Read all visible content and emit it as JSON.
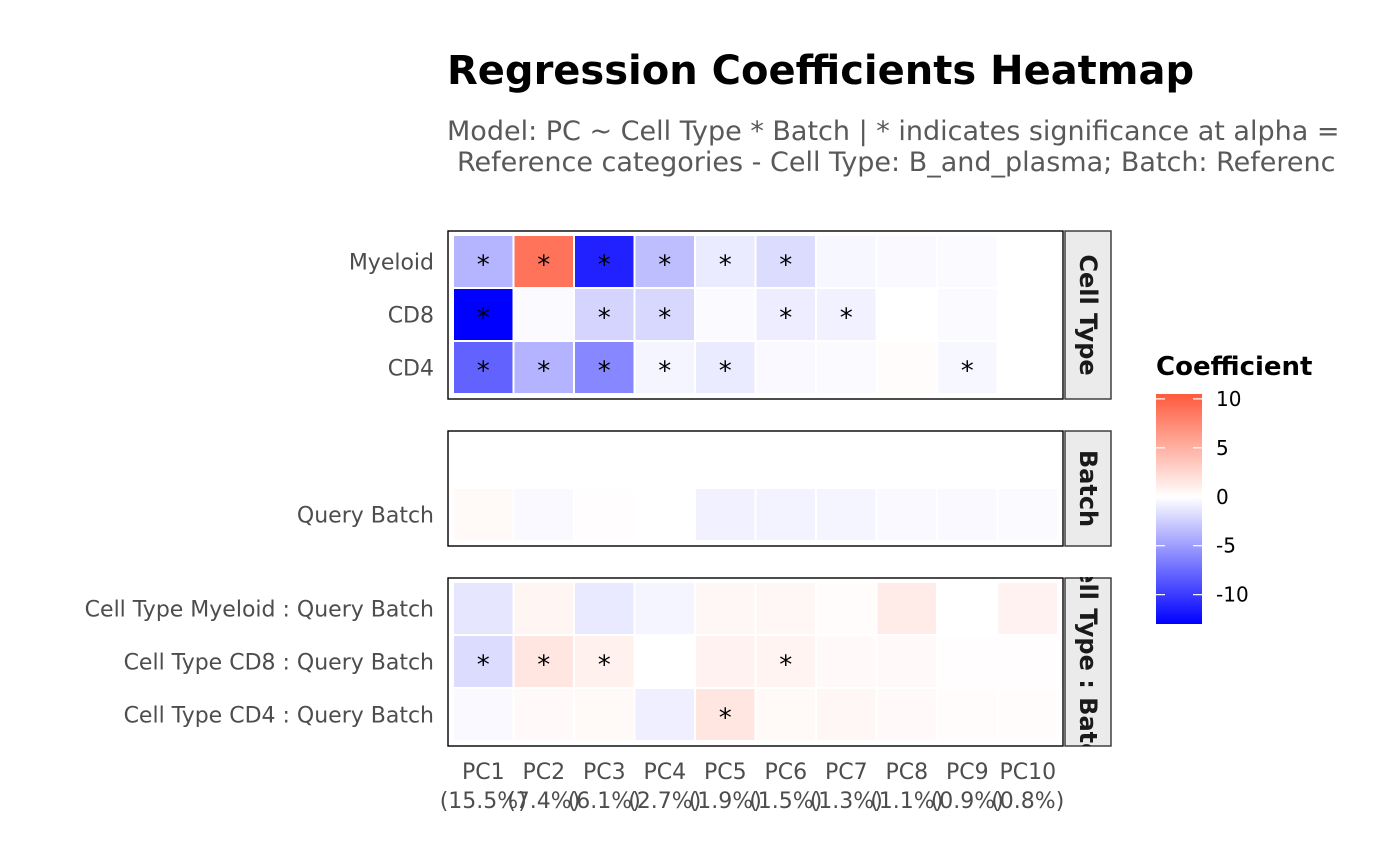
{
  "chart_data": {
    "type": "heatmap",
    "title": "Regression Coefficients Heatmap",
    "subtitle_lines": [
      "Model: PC ~ Cell Type * Batch | * indicates significance at alpha = ",
      "Reference categories - Cell Type: B_and_plasma; Batch: Referenc"
    ],
    "columns": [
      "PC1",
      "PC2",
      "PC3",
      "PC4",
      "PC5",
      "PC6",
      "PC7",
      "PC8",
      "PC9",
      "PC10"
    ],
    "column_variance": [
      "(15.5%)",
      "(7.4%)",
      "(6.1%)",
      "(2.7%)",
      "(1.9%)",
      "(1.5%)",
      "(1.3%)",
      "(1.1%)",
      "(0.9%)",
      "(0.8%)"
    ],
    "legend": {
      "title": "Coefficient",
      "ticks": [
        10,
        5,
        0,
        -5,
        -10
      ],
      "range": [
        -13,
        10.5
      ],
      "low_color": "#0000ff",
      "mid_color": "#ffffff",
      "high_color": "#ff5a3c"
    },
    "significance_symbol": "*",
    "facets": [
      {
        "name": "Cell Type",
        "rows": [
          {
            "label": "Myeloid",
            "values": [
              -3.8,
              8.9,
              -11.3,
              -3.3,
              -1.0,
              -1.8,
              -0.4,
              -0.3,
              -0.2,
              0.0
            ],
            "significant": [
              true,
              true,
              true,
              true,
              true,
              true,
              false,
              false,
              false,
              false
            ]
          },
          {
            "label": "CD8",
            "values": [
              -13.0,
              -0.2,
              -2.2,
              -2.0,
              -0.2,
              -0.9,
              -0.7,
              0.0,
              -0.2,
              0.0
            ],
            "significant": [
              true,
              false,
              true,
              true,
              false,
              true,
              true,
              false,
              false,
              false
            ]
          },
          {
            "label": "CD4",
            "values": [
              -8.0,
              -3.9,
              -6.1,
              -0.5,
              -1.0,
              -0.3,
              -0.2,
              0.2,
              -0.4,
              0.0
            ],
            "significant": [
              true,
              true,
              true,
              true,
              true,
              false,
              false,
              false,
              true,
              false
            ]
          }
        ]
      },
      {
        "name": "Batch",
        "rows": [
          {
            "label": "",
            "values": [
              null,
              null,
              null,
              null,
              null,
              null,
              null,
              null,
              null,
              null
            ],
            "significant": [
              false,
              false,
              false,
              false,
              false,
              false,
              false,
              false,
              false,
              false
            ]
          },
          {
            "label": "Query Batch",
            "values": [
              0.4,
              -0.3,
              0.1,
              0.0,
              -0.7,
              -0.6,
              -0.5,
              -0.3,
              -0.3,
              -0.2
            ],
            "significant": [
              false,
              false,
              false,
              false,
              false,
              false,
              false,
              false,
              false,
              false
            ]
          }
        ]
      },
      {
        "name": "Cell Type : Batch",
        "rows": [
          {
            "label": "Cell Type Myeloid : Query Batch",
            "values": [
              -1.3,
              0.6,
              -1.1,
              -0.5,
              0.5,
              0.5,
              0.2,
              1.3,
              0.0,
              0.8
            ],
            "significant": [
              false,
              false,
              false,
              false,
              false,
              false,
              false,
              false,
              false,
              false
            ]
          },
          {
            "label": "Cell Type CD8 : Query Batch",
            "values": [
              -1.8,
              1.6,
              0.9,
              0.0,
              0.8,
              0.7,
              0.3,
              0.3,
              0.1,
              0.1
            ],
            "significant": [
              true,
              true,
              true,
              false,
              false,
              true,
              false,
              false,
              false,
              false
            ]
          },
          {
            "label": "Cell Type CD4 : Query Batch",
            "values": [
              -0.3,
              0.3,
              0.4,
              -0.8,
              1.6,
              0.4,
              0.5,
              0.3,
              0.2,
              0.2
            ],
            "significant": [
              false,
              false,
              false,
              false,
              true,
              false,
              false,
              false,
              false,
              false
            ]
          }
        ]
      }
    ]
  }
}
